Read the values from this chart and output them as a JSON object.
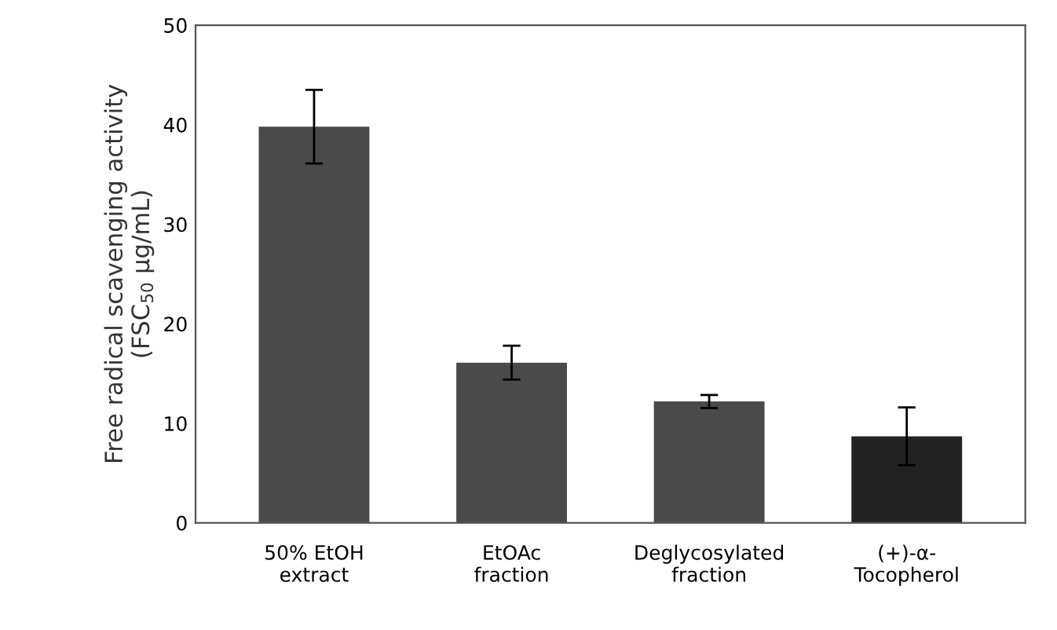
{
  "chart_data": {
    "type": "bar",
    "ylabel": "Free radical scavenging activity\n(FSC$_{50}$ μg/mL)",
    "categories": [
      "50% EtOH\nextract",
      "EtOAc\nfraction",
      "Deglycosylated\nfraction",
      "(+)-α-\nTocopherol"
    ],
    "values": [
      39.8,
      16.1,
      12.2,
      8.7
    ],
    "errors": [
      3.7,
      1.7,
      0.65,
      2.9
    ],
    "colors": [
      "#4a4a4a",
      "#4a4a4a",
      "#4a4a4a",
      "#222222"
    ],
    "ylim": [
      0,
      50
    ],
    "yticks": [
      0,
      10,
      20,
      30,
      40,
      50
    ],
    "grid": false,
    "legend": false
  }
}
